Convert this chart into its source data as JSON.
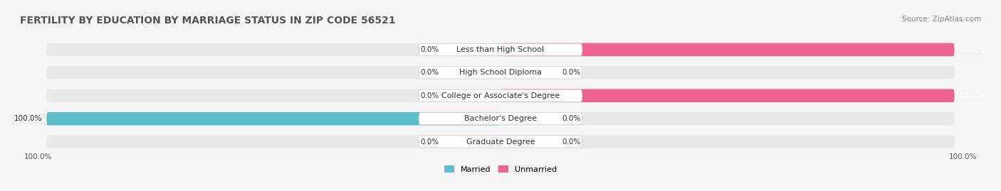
{
  "title": "FERTILITY BY EDUCATION BY MARRIAGE STATUS IN ZIP CODE 56521",
  "source": "Source: ZipAtlas.com",
  "categories": [
    "Less than High School",
    "High School Diploma",
    "College or Associate's Degree",
    "Bachelor's Degree",
    "Graduate Degree"
  ],
  "married": [
    0.0,
    0.0,
    0.0,
    100.0,
    0.0
  ],
  "unmarried": [
    100.0,
    0.0,
    100.0,
    0.0,
    0.0
  ],
  "married_color": "#5bbcca",
  "unmarried_color": "#f06292",
  "married_light_color": "#a8dce5",
  "unmarried_light_color": "#f8bbd0",
  "bg_color": "#f5f5f5",
  "bar_bg_color": "#e8e8e8",
  "title_fontsize": 10,
  "source_fontsize": 7.5,
  "label_fontsize": 7.5,
  "cat_fontsize": 8,
  "legend_fontsize": 8,
  "bar_height": 0.55,
  "xlim": [
    -100,
    100
  ]
}
